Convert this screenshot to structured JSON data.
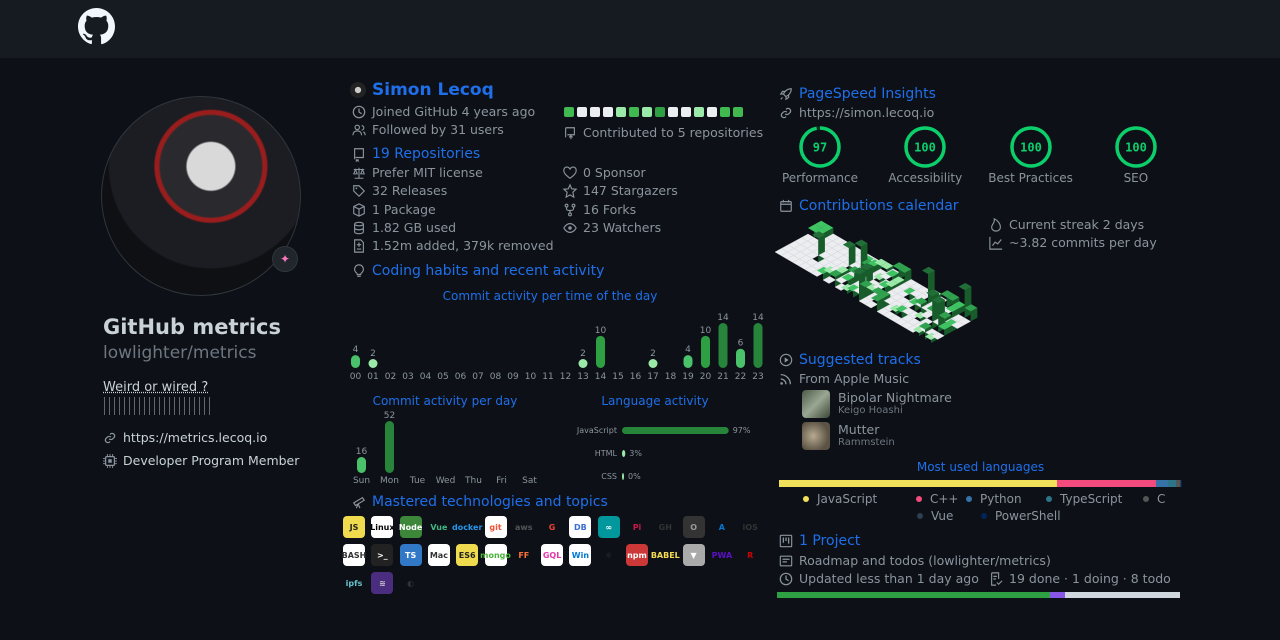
{
  "header": {
    "logo": "github-octocat-icon"
  },
  "profile": {
    "title": "GitHub metrics",
    "repo": "lowlighter/metrics",
    "bio": "Weird or wired ?",
    "link": "https://metrics.lecoq.io",
    "membership": "Developer Program Member",
    "badge_icon": "sparkle-icon"
  },
  "user": {
    "name": "Simon Lecoq",
    "joined": "Joined GitHub 4 years ago",
    "followers": "Followed by 31 users",
    "contributed": "Contributed to 5 repositories",
    "recent_days": [
      "green",
      "white",
      "white",
      "white",
      "light",
      "green",
      "light",
      "dark",
      "white",
      "white",
      "light",
      "white",
      "green",
      "green"
    ]
  },
  "repos": {
    "title": "19 Repositories",
    "license": "Prefer MIT license",
    "releases": "32 Releases",
    "packages": "1 Package",
    "disk": "1.82 GB used",
    "changes": "1.52m added, 379k removed",
    "sponsors": "0 Sponsor",
    "stargazers": "147 Stargazers",
    "forks": "16 Forks",
    "watchers": "23 Watchers"
  },
  "habits": {
    "title": "Coding habits and recent activity",
    "hours_title": "Commit activity per time of the day",
    "days_title": "Commit activity per day",
    "lang_title": "Language activity"
  },
  "chart_data": [
    {
      "type": "bar",
      "title": "Commit activity per time of the day",
      "categories": [
        "00",
        "01",
        "02",
        "03",
        "04",
        "05",
        "06",
        "07",
        "08",
        "09",
        "10",
        "11",
        "12",
        "13",
        "14",
        "15",
        "16",
        "17",
        "18",
        "19",
        "20",
        "21",
        "22",
        "23"
      ],
      "values": [
        4,
        2,
        0,
        0,
        0,
        0,
        0,
        0,
        0,
        0,
        0,
        0,
        0,
        2,
        10,
        0,
        0,
        2,
        0,
        4,
        10,
        14,
        6,
        14
      ]
    },
    {
      "type": "bar",
      "title": "Commit activity per day",
      "categories": [
        "Sun",
        "Mon",
        "Tue",
        "Wed",
        "Thu",
        "Fri",
        "Sat"
      ],
      "values": [
        16,
        52,
        0,
        0,
        0,
        0,
        0
      ]
    },
    {
      "type": "bar",
      "title": "Language activity",
      "categories": [
        "JavaScript",
        "HTML",
        "CSS"
      ],
      "values": [
        97,
        3,
        0
      ],
      "labels": [
        "97%",
        "3%",
        "0%"
      ]
    }
  ],
  "topics": {
    "title": "Mastered technologies and topics",
    "items": [
      {
        "name": "JS",
        "bg": "#f0db4f",
        "fg": "#222"
      },
      {
        "name": "Linux",
        "bg": "#fff",
        "fg": "#000"
      },
      {
        "name": "Node",
        "bg": "#3c873a",
        "fg": "#fff"
      },
      {
        "name": "Vue",
        "bg": "#0d1117",
        "fg": "#41b883"
      },
      {
        "name": "docker",
        "bg": "#0d1117",
        "fg": "#2496ed"
      },
      {
        "name": "git",
        "bg": "#fff",
        "fg": "#f05033"
      },
      {
        "name": "aws",
        "bg": "#0d1117",
        "fg": "#555"
      },
      {
        "name": "G",
        "bg": "#0d1117",
        "fg": "#ea4335"
      },
      {
        "name": "DB",
        "bg": "#fff",
        "fg": "#3b6fcf"
      },
      {
        "name": "∞",
        "bg": "#00979d",
        "fg": "#fff"
      },
      {
        "name": "Pi",
        "bg": "#0d1117",
        "fg": "#c51a4a"
      },
      {
        "name": "GH",
        "bg": "#0d1117",
        "fg": "#333"
      },
      {
        "name": "O",
        "bg": "#333",
        "fg": "#999"
      },
      {
        "name": "A",
        "bg": "#0d1117",
        "fg": "#0078d4"
      },
      {
        "name": "iOS",
        "bg": "#0d1117",
        "fg": "#333"
      },
      {
        "name": "BASH",
        "bg": "#fff",
        "fg": "#333"
      },
      {
        "name": ">_",
        "bg": "#222",
        "fg": "#fff"
      },
      {
        "name": "TS",
        "bg": "#3178c6",
        "fg": "#fff"
      },
      {
        "name": "Mac",
        "bg": "#fff",
        "fg": "#333"
      },
      {
        "name": "ES6",
        "bg": "#f0db4f",
        "fg": "#222"
      },
      {
        "name": "mongo",
        "bg": "#fff",
        "fg": "#4db33d"
      },
      {
        "name": "FF",
        "bg": "#0d1117",
        "fg": "#ff7139"
      },
      {
        "name": "GQL",
        "bg": "#fff",
        "fg": "#e535ab"
      },
      {
        "name": "Win",
        "bg": "#fff",
        "fg": "#0078d4"
      },
      {
        "name": "⚛",
        "bg": "#0d1117",
        "fg": "#333"
      },
      {
        "name": "npm",
        "bg": "#cb3837",
        "fg": "#fff"
      },
      {
        "name": "BABEL",
        "bg": "#0d1117",
        "fg": "#f5da55"
      },
      {
        "name": "▼",
        "bg": "#aaa",
        "fg": "#fff"
      },
      {
        "name": "PWA",
        "bg": "#0d1117",
        "fg": "#5a0fc8"
      },
      {
        "name": "R",
        "bg": "#0d1117",
        "fg": "#c00"
      },
      {
        "name": "ipfs",
        "bg": "#0d1117",
        "fg": "#65c2cb"
      },
      {
        "name": "≋",
        "bg": "#4b2d7f",
        "fg": "#ccc"
      },
      {
        "name": "◐",
        "bg": "#0d1117",
        "fg": "#333"
      }
    ]
  },
  "pagespeed": {
    "title": "PageSpeed Insights",
    "url": "https://simon.lecoq.io",
    "scores": [
      {
        "label": "Performance",
        "value": 97
      },
      {
        "label": "Accessibility",
        "value": 100
      },
      {
        "label": "Best Practices",
        "value": 100
      },
      {
        "label": "SEO",
        "value": 100
      }
    ],
    "color": "#0cce6b"
  },
  "calendar": {
    "title": "Contributions calendar",
    "streak": "Current streak 2 days",
    "average": "~3.82 commits per day"
  },
  "tracks": {
    "title": "Suggested tracks",
    "source": "From Apple Music",
    "items": [
      {
        "title": "Bipolar Nightmare",
        "artist": "Keigo Hoashi"
      },
      {
        "title": "Mutter",
        "artist": "Rammstein"
      }
    ]
  },
  "languages": {
    "title": "Most used languages",
    "items": [
      {
        "name": "JavaScript",
        "color": "#f1e05a",
        "share": 69
      },
      {
        "name": "C++",
        "color": "#f34b7d",
        "share": 24.5
      },
      {
        "name": "Python",
        "color": "#3572a5",
        "share": 3
      },
      {
        "name": "TypeScript",
        "color": "#2b7489",
        "share": 2
      },
      {
        "name": "C",
        "color": "#555555",
        "share": 1
      },
      {
        "name": "Vue",
        "color": "#2c3e50",
        "share": 0.3
      },
      {
        "name": "PowerShell",
        "color": "#012456",
        "share": 0.2
      }
    ]
  },
  "project": {
    "title": "1 Project",
    "name": "Roadmap and todos (lowlighter/metrics)",
    "updated": "Updated less than 1 day ago",
    "progress": "19 done · 1 doing · 8 todo",
    "done": 19,
    "doing": 1,
    "todo": 8
  }
}
